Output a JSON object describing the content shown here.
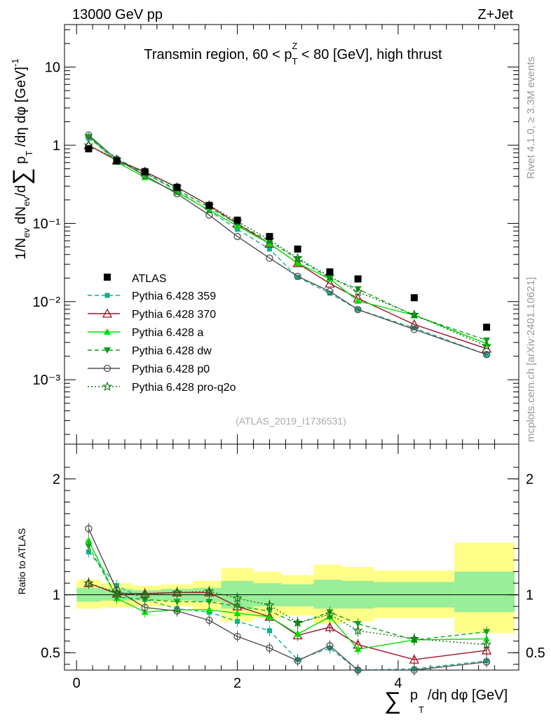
{
  "header": {
    "energy": "13000 GeV pp",
    "process": "Z+Jet"
  },
  "side_labels": {
    "rivet": "Rivet 4.1.0, ≥ 3.3M events",
    "mcplots": "mcplots.cern.ch [arXiv:2401.10621]"
  },
  "plot": {
    "title": "Transmin region, 60 < p_T^Z < 80 [GeV], high thrust",
    "ylabel_main": "1/N_ev dN_ev/d Σ p_T /dη dφ [GeV]^-1",
    "ylabel_ratio": "Ratio to ATLAS",
    "xlabel": "Σ p_T /dη dφ [GeV]",
    "analysis_id": "(ATLAS_2019_I1736531)"
  },
  "chart_data": {
    "type": "line",
    "x": [
      0.15,
      0.5,
      0.85,
      1.25,
      1.65,
      2.0,
      2.4,
      2.75,
      3.15,
      3.5,
      4.2,
      5.1
    ],
    "main_ylim": [
      0.00015,
      35
    ],
    "main_yscale": "log",
    "main_ticks": [
      {
        "v": 10,
        "label": "10"
      },
      {
        "v": 1,
        "label": "1"
      },
      {
        "v": 0.1,
        "label": "10⁻¹"
      },
      {
        "v": 0.01,
        "label": "10⁻²"
      },
      {
        "v": 0.001,
        "label": "10⁻³"
      }
    ],
    "ratio_ylim": [
      0.35,
      2.3
    ],
    "ratio_ticks": [
      {
        "v": 2,
        "label": "2"
      },
      {
        "v": 1,
        "label": "1"
      },
      {
        "v": 0.5,
        "label": "0.5"
      }
    ],
    "xlim": [
      -0.15,
      5.5
    ],
    "x_ticks": [
      {
        "v": 0,
        "label": "0"
      },
      {
        "v": 2,
        "label": "2"
      },
      {
        "v": 4,
        "label": "4"
      }
    ],
    "data": {
      "name": "ATLAS",
      "values": [
        0.9,
        0.63,
        0.46,
        0.29,
        0.17,
        0.11,
        0.068,
        0.047,
        0.024,
        0.0195,
        0.0112,
        0.0047
      ]
    },
    "bands": [
      {
        "x0": 0.0,
        "x1": 0.3,
        "y_lo": 0.88,
        "y_hi": 1.13,
        "g_lo": 0.94,
        "g_hi": 1.06
      },
      {
        "x0": 0.3,
        "x1": 0.7,
        "y_lo": 0.89,
        "y_hi": 1.1,
        "g_lo": 0.95,
        "g_hi": 1.05
      },
      {
        "x0": 0.7,
        "x1": 1.05,
        "y_lo": 0.9,
        "y_hi": 1.08,
        "g_lo": 0.95,
        "g_hi": 1.04
      },
      {
        "x0": 1.05,
        "x1": 1.45,
        "y_lo": 0.9,
        "y_hi": 1.09,
        "g_lo": 0.95,
        "g_hi": 1.05
      },
      {
        "x0": 1.45,
        "x1": 1.8,
        "y_lo": 0.87,
        "y_hi": 1.12,
        "g_lo": 0.94,
        "g_hi": 1.06
      },
      {
        "x0": 1.8,
        "x1": 2.2,
        "y_lo": 0.77,
        "y_hi": 1.23,
        "g_lo": 0.88,
        "g_hi": 1.12
      },
      {
        "x0": 2.2,
        "x1": 2.55,
        "y_lo": 0.8,
        "y_hi": 1.2,
        "g_lo": 0.9,
        "g_hi": 1.1
      },
      {
        "x0": 2.55,
        "x1": 2.95,
        "y_lo": 0.82,
        "y_hi": 1.17,
        "g_lo": 0.9,
        "g_hi": 1.09
      },
      {
        "x0": 2.95,
        "x1": 3.3,
        "y_lo": 0.75,
        "y_hi": 1.26,
        "g_lo": 0.88,
        "g_hi": 1.13
      },
      {
        "x0": 3.3,
        "x1": 3.7,
        "y_lo": 0.77,
        "y_hi": 1.24,
        "g_lo": 0.88,
        "g_hi": 1.12
      },
      {
        "x0": 3.7,
        "x1": 4.7,
        "y_lo": 0.8,
        "y_hi": 1.21,
        "g_lo": 0.89,
        "g_hi": 1.11
      },
      {
        "x0": 4.7,
        "x1": 5.45,
        "y_lo": 0.67,
        "y_hi": 1.45,
        "g_lo": 0.85,
        "g_hi": 1.2
      }
    ],
    "series": [
      {
        "name": "Pythia 6.428 359",
        "color": "#10b090",
        "dash": "6,4",
        "marker": "square",
        "values": [
          1.23,
          0.68,
          0.44,
          0.26,
          0.145,
          0.084,
          0.047,
          0.0205,
          0.0128,
          0.0079,
          0.0046,
          0.0021
        ],
        "ratio": [
          1.37,
          1.08,
          0.96,
          0.88,
          0.85,
          0.77,
          0.69,
          0.44,
          0.54,
          0.35,
          0.36,
          0.43
        ]
      },
      {
        "name": "Pythia 6.428 370",
        "color": "#a01028",
        "dash": "",
        "marker": "triangle-open",
        "values": [
          1.0,
          0.64,
          0.46,
          0.29,
          0.17,
          0.099,
          0.055,
          0.031,
          0.017,
          0.011,
          0.0051,
          0.0025
        ],
        "ratio": [
          1.1,
          1.01,
          1.01,
          1.02,
          1.02,
          0.9,
          0.81,
          0.65,
          0.72,
          0.57,
          0.44,
          0.52
        ]
      },
      {
        "name": "Pythia 6.428 a",
        "color": "#00e000",
        "dash": "",
        "marker": "triangle",
        "values": [
          1.32,
          0.61,
          0.39,
          0.25,
          0.148,
          0.093,
          0.055,
          0.031,
          0.0195,
          0.0102,
          0.0067,
          0.0029
        ],
        "ratio": [
          1.47,
          0.97,
          0.85,
          0.87,
          0.87,
          0.84,
          0.81,
          0.66,
          0.81,
          0.53,
          0.61,
          0.62
        ]
      },
      {
        "name": "Pythia 6.428 dw",
        "color": "#10a020",
        "dash": "6,4",
        "marker": "triangle-down",
        "values": [
          1.28,
          0.62,
          0.44,
          0.27,
          0.16,
          0.099,
          0.059,
          0.035,
          0.02,
          0.0145,
          0.0066,
          0.0032
        ],
        "ratio": [
          1.42,
          0.98,
          0.96,
          0.94,
          0.94,
          0.9,
          0.86,
          0.75,
          0.85,
          0.75,
          0.61,
          0.68
        ]
      },
      {
        "name": "Pythia 6.428 p0",
        "color": "#505050",
        "dash": "",
        "marker": "circle-open",
        "values": [
          1.35,
          0.66,
          0.41,
          0.24,
          0.128,
          0.068,
          0.036,
          0.021,
          0.0135,
          0.0079,
          0.0044,
          0.0021
        ],
        "ratio": [
          1.57,
          1.04,
          0.89,
          0.86,
          0.78,
          0.64,
          0.54,
          0.43,
          0.56,
          0.35,
          0.33,
          0.42
        ]
      },
      {
        "name": "Pythia 6.428 pro-q2o",
        "color": "#107010",
        "dash": "2,3",
        "marker": "star",
        "values": [
          1.0,
          0.66,
          0.45,
          0.29,
          0.17,
          0.106,
          0.062,
          0.036,
          0.021,
          0.0133,
          0.0068,
          0.0027
        ],
        "ratio": [
          1.1,
          1.02,
          1.0,
          1.02,
          1.03,
          0.97,
          0.91,
          0.76,
          0.83,
          0.69,
          0.62,
          0.57
        ]
      }
    ],
    "legend_position": "left-middle"
  }
}
